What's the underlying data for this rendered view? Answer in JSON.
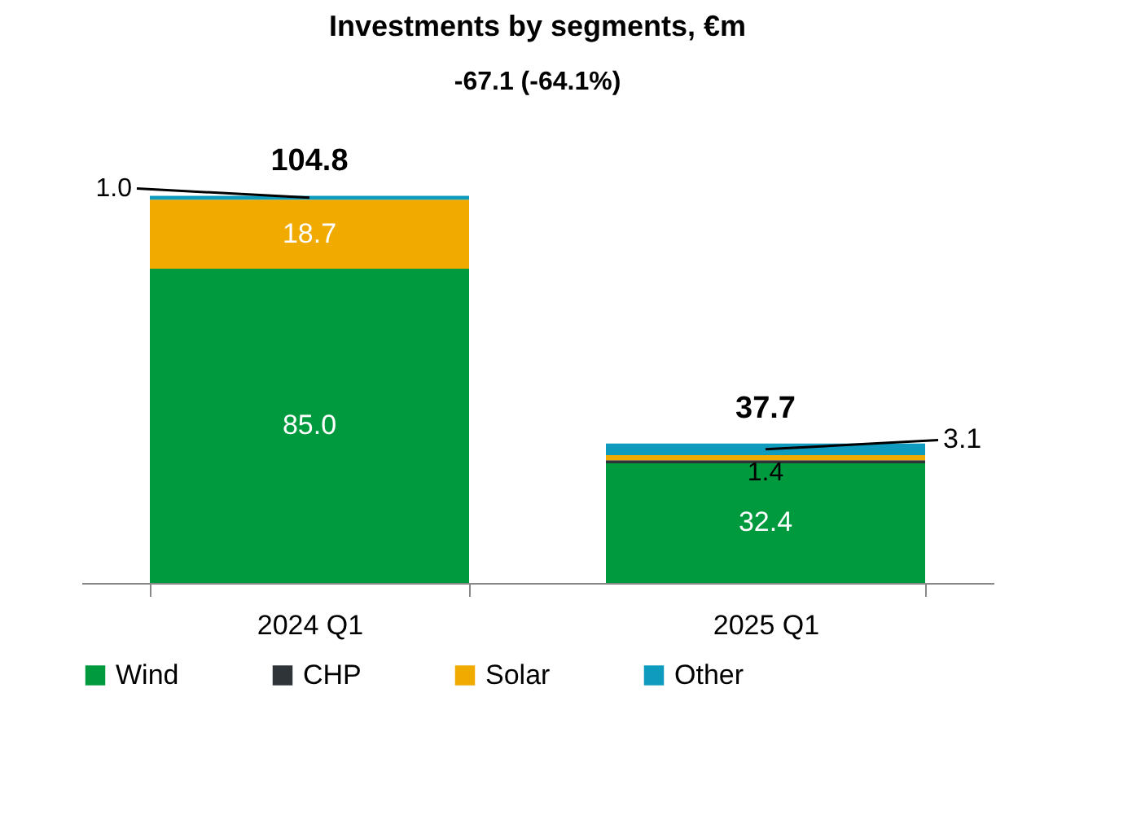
{
  "chart_data": {
    "type": "bar",
    "title": "Investments by segments, €m",
    "stacked": true,
    "categories": [
      "2024 Q1",
      "2025 Q1"
    ],
    "series": [
      {
        "name": "Wind",
        "color": "#009a3e",
        "values": [
          85.0,
          32.4
        ],
        "value_labels": [
          "85.0",
          "32.4"
        ]
      },
      {
        "name": "CHP",
        "color": "#2f3439",
        "values": [
          null,
          0.8
        ],
        "value_labels": [
          null,
          null
        ]
      },
      {
        "name": "Solar",
        "color": "#f0aa00",
        "values": [
          18.7,
          1.4
        ],
        "value_labels": [
          "18.7",
          "1.4"
        ]
      },
      {
        "name": "Other",
        "color": "#0e9bbd",
        "values": [
          1.0,
          3.1
        ],
        "value_labels": [
          "1.0",
          "3.1"
        ]
      }
    ],
    "totals": [
      "104.8",
      "37.7"
    ],
    "annotations": [
      "-67.1 (-64.1%)"
    ],
    "legend": "bottom",
    "grid": false
  }
}
